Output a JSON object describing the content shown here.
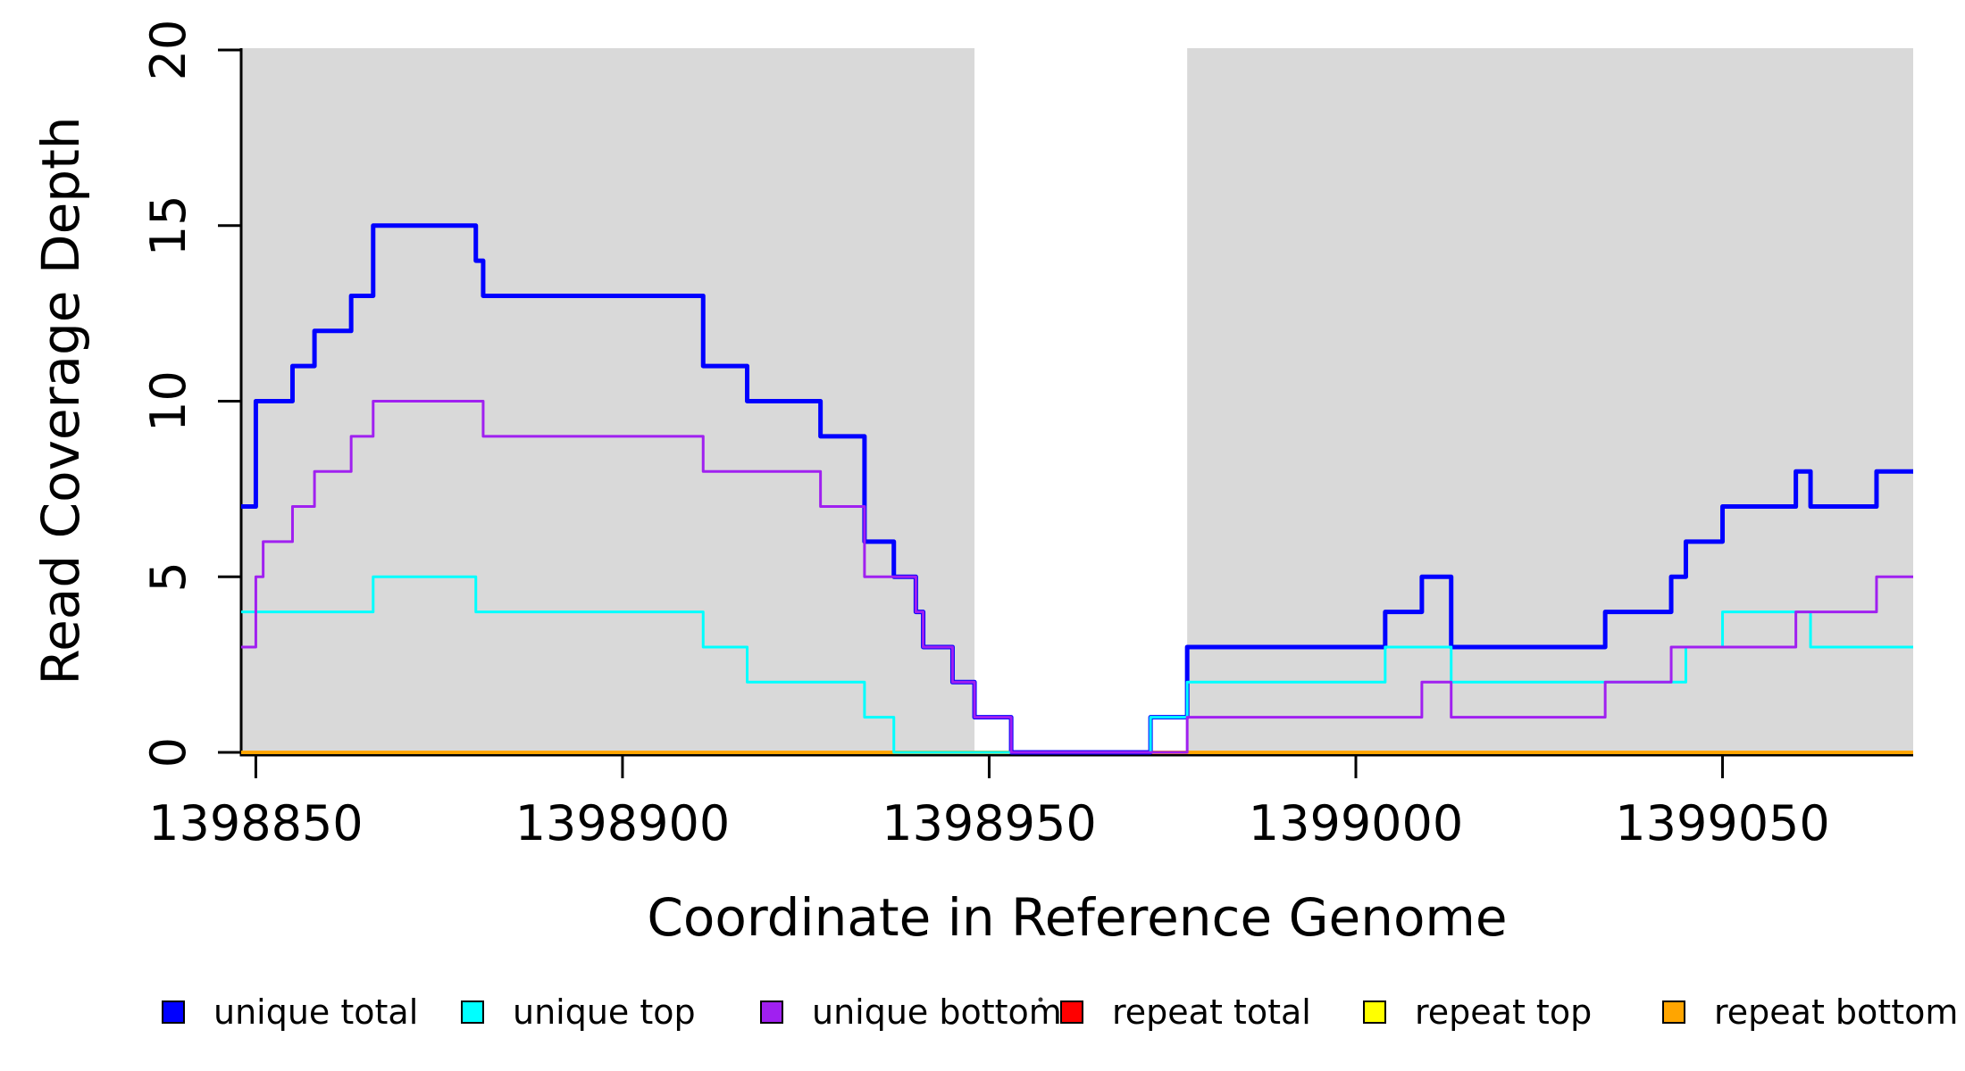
{
  "chart_data": {
    "type": "line",
    "subtype": "step-post-coverage-plot",
    "title": "",
    "xlabel": "Coordinate in Reference Genome",
    "ylabel": "Read Coverage Depth",
    "xlim": [
      1398848,
      1399076
    ],
    "ylim": [
      0,
      20
    ],
    "x_ticks": [
      "1398850",
      "1398900",
      "1398950",
      "1399000",
      "1399050"
    ],
    "x_tick_values": [
      1398850,
      1398900,
      1398950,
      1399000,
      1399050
    ],
    "y_ticks": [
      "0",
      "5",
      "10",
      "15",
      "20"
    ],
    "y_tick_values": [
      0,
      5,
      10,
      15,
      20
    ],
    "grid": false,
    "background_color": "#FFFFFF",
    "shade_color": "#D9D9D9",
    "axis_color": "#000000",
    "shaded_regions": [
      {
        "from": 1398848,
        "to": 1398948
      },
      {
        "from": 1398977,
        "to": 1399076
      }
    ],
    "draw_order": [
      "repeat total",
      "repeat top",
      "repeat bottom",
      "unique total",
      "unique top",
      "unique bottom"
    ],
    "series": [
      {
        "name": "unique total",
        "color": "#0000FF",
        "linewidth": 5,
        "steps": [
          [
            1398848,
            7
          ],
          [
            1398850,
            10
          ],
          [
            1398855,
            11
          ],
          [
            1398858,
            12
          ],
          [
            1398863,
            13
          ],
          [
            1398866,
            15
          ],
          [
            1398880,
            14
          ],
          [
            1398881,
            13
          ],
          [
            1398911,
            11
          ],
          [
            1398917,
            10
          ],
          [
            1398927,
            9
          ],
          [
            1398933,
            6
          ],
          [
            1398937,
            5
          ],
          [
            1398940,
            4
          ],
          [
            1398941,
            3
          ],
          [
            1398945,
            2
          ],
          [
            1398948,
            1
          ],
          [
            1398953,
            0
          ],
          [
            1398972,
            1
          ],
          [
            1398977,
            3
          ],
          [
            1399004,
            4
          ],
          [
            1399009,
            5
          ],
          [
            1399013,
            3
          ],
          [
            1399034,
            4
          ],
          [
            1399043,
            5
          ],
          [
            1399045,
            6
          ],
          [
            1399050,
            7
          ],
          [
            1399060,
            8
          ],
          [
            1399062,
            7
          ],
          [
            1399071,
            8
          ]
        ]
      },
      {
        "name": "unique top",
        "color": "#00FFFF",
        "linewidth": 3,
        "steps": [
          [
            1398848,
            4
          ],
          [
            1398866,
            5
          ],
          [
            1398880,
            4
          ],
          [
            1398911,
            3
          ],
          [
            1398917,
            2
          ],
          [
            1398933,
            1
          ],
          [
            1398937,
            0
          ],
          [
            1398972,
            1
          ],
          [
            1398977,
            2
          ],
          [
            1399004,
            3
          ],
          [
            1399013,
            2
          ],
          [
            1399045,
            3
          ],
          [
            1399050,
            4
          ],
          [
            1399062,
            3
          ]
        ]
      },
      {
        "name": "unique bottom",
        "color": "#A020F0",
        "linewidth": 3,
        "steps": [
          [
            1398848,
            3
          ],
          [
            1398850,
            5
          ],
          [
            1398851,
            6
          ],
          [
            1398855,
            7
          ],
          [
            1398858,
            8
          ],
          [
            1398863,
            9
          ],
          [
            1398866,
            10
          ],
          [
            1398881,
            9
          ],
          [
            1398911,
            8
          ],
          [
            1398927,
            7
          ],
          [
            1398933,
            5
          ],
          [
            1398940,
            4
          ],
          [
            1398941,
            3
          ],
          [
            1398945,
            2
          ],
          [
            1398948,
            1
          ],
          [
            1398953,
            0
          ],
          [
            1398977,
            1
          ],
          [
            1399009,
            2
          ],
          [
            1399013,
            1
          ],
          [
            1399034,
            2
          ],
          [
            1399043,
            3
          ],
          [
            1399060,
            4
          ],
          [
            1399071,
            5
          ]
        ]
      },
      {
        "name": "repeat total",
        "color": "#FF0000",
        "linewidth": 3,
        "steps": [
          [
            1398848,
            0
          ]
        ]
      },
      {
        "name": "repeat top",
        "color": "#FFFF00",
        "linewidth": 3,
        "steps": [
          [
            1398848,
            0
          ]
        ]
      },
      {
        "name": "repeat bottom",
        "color": "#FFA500",
        "linewidth": 4,
        "steps": [
          [
            1398848,
            0
          ]
        ]
      }
    ],
    "legend": {
      "position": "bottom",
      "items": [
        {
          "label": "unique total",
          "color": "#0000FF"
        },
        {
          "label": "unique top",
          "color": "#00FFFF"
        },
        {
          "label": "unique bottom",
          "color": "#A020F0"
        },
        {
          "label": "repeat total",
          "color": "#FF0000"
        },
        {
          "label": "repeat top",
          "color": "#FFFF00"
        },
        {
          "label": "repeat bottom",
          "color": "#FFA500"
        }
      ]
    }
  }
}
